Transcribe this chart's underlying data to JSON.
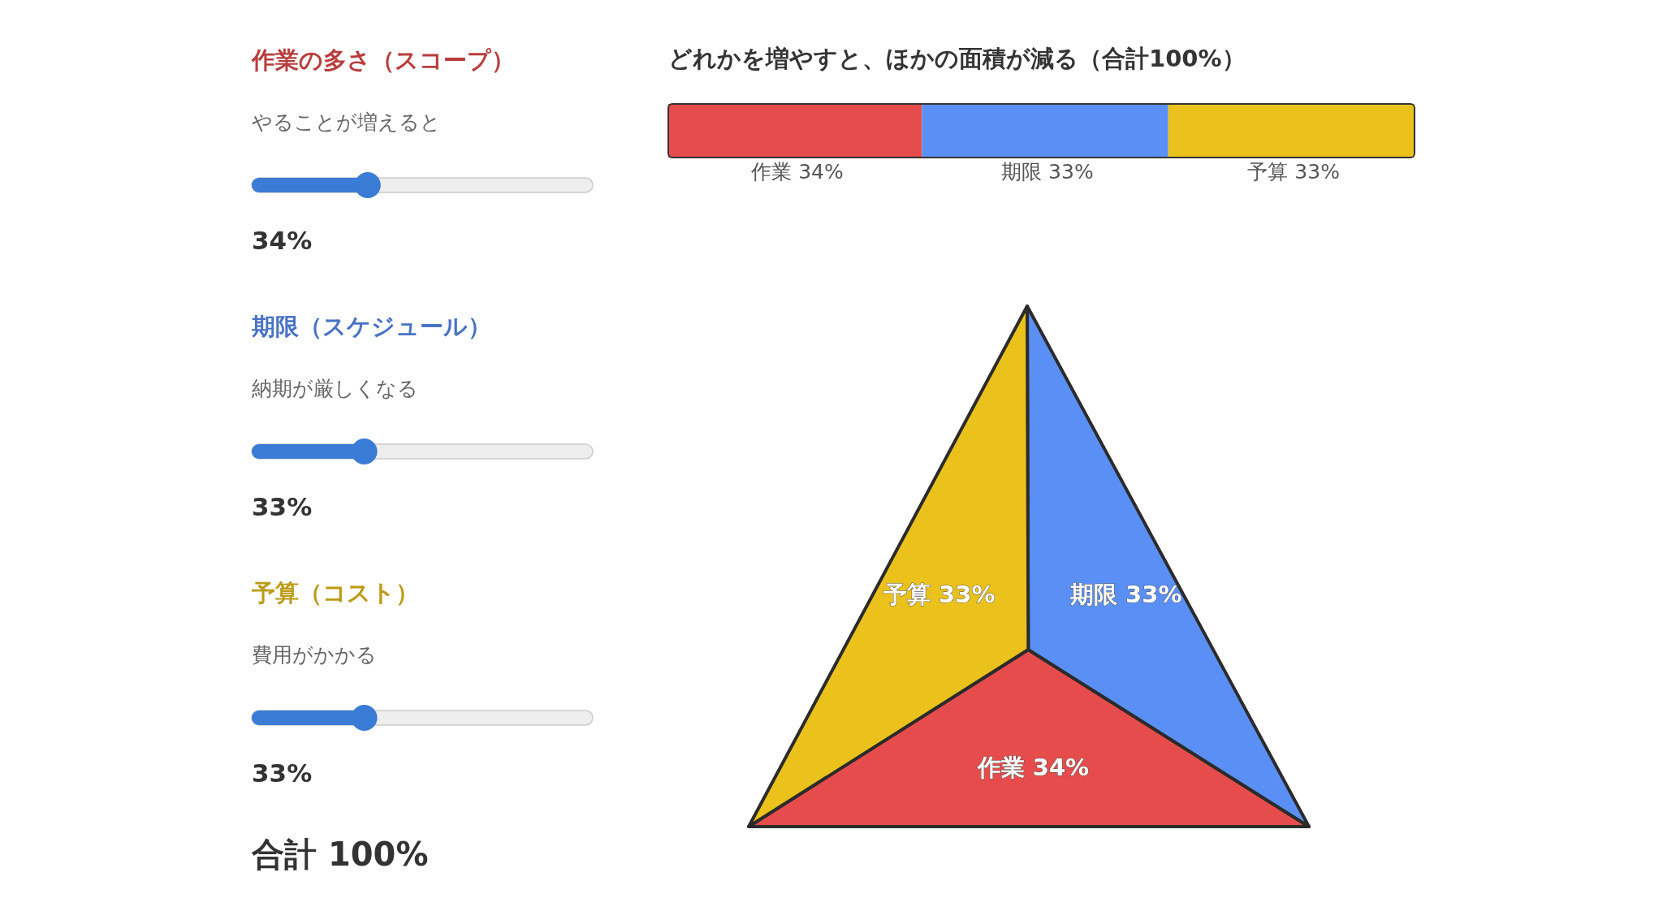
{
  "chart_data": [
    {
      "type": "other",
      "title": "作業の多さ（スコープ）",
      "subtitle": "やることが増えると",
      "values": [
        34
      ],
      "value_labels": [
        "34%"
      ],
      "color": "#3a7bd5"
    },
    {
      "type": "other",
      "title": "期限（スケジュール）",
      "subtitle": "納期が厳しくなる",
      "values": [
        33
      ],
      "value_labels": [
        "33%"
      ],
      "color": "#3a7bd5"
    },
    {
      "type": "other",
      "title": "予算（コスト）",
      "subtitle": "費用がかかる",
      "values": [
        33
      ],
      "value_labels": [
        "33%"
      ],
      "color": "#3a7bd5"
    },
    {
      "type": "other",
      "annotations": [
        "合計 100%"
      ]
    },
    {
      "type": "bar",
      "orientation": "horizontal",
      "stacked": true,
      "title": "どれかを増やすと、ほかの面積が減る（合計100%）",
      "categories": [
        null
      ],
      "series": [
        {
          "name": "作業",
          "color": "#e64c4c",
          "values": [
            34
          ],
          "value_labels": [
            "34%"
          ]
        },
        {
          "name": "期限",
          "color": "#5a90f5",
          "values": [
            33
          ],
          "value_labels": [
            "33%"
          ]
        },
        {
          "name": "予算",
          "color": "#ebc21c",
          "values": [
            33
          ],
          "value_labels": [
            "33%"
          ]
        }
      ]
    },
    {
      "type": "other",
      "categories": [
        "作業",
        "期限",
        "予算"
      ],
      "values": [
        34,
        33,
        33
      ],
      "value_labels": [
        "34%",
        "33%",
        "33%"
      ],
      "colors": [
        "#e64c4c",
        "#5a90f5",
        "#ebc21c"
      ]
    }
  ]
}
